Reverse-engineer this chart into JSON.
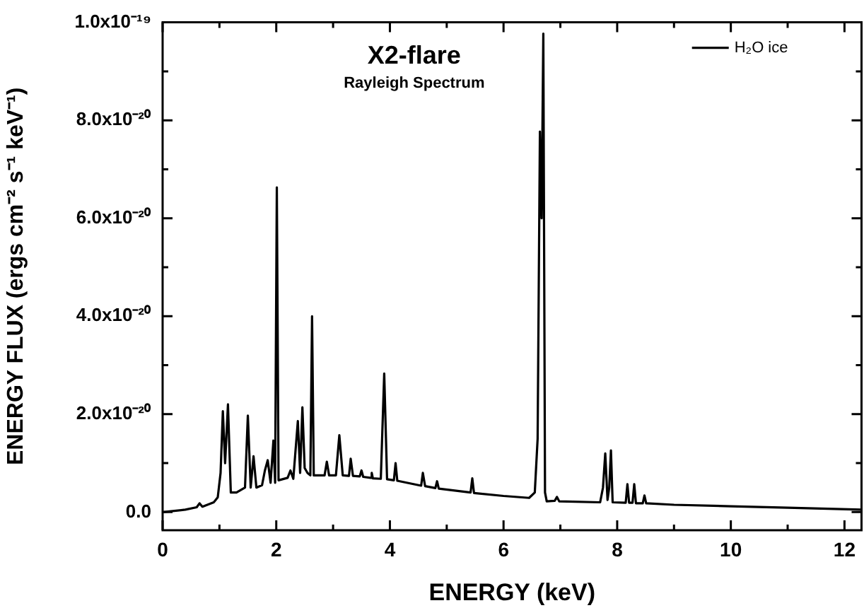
{
  "chart_data": {
    "type": "line",
    "title": "X2-flare",
    "subtitle": "Rayleigh Spectrum",
    "xlabel": "ENERGY (keV)",
    "ylabel": "ENERGY FLUX (ergs cm⁻² s⁻¹ keV⁻¹)",
    "xlim": [
      0,
      12.3
    ],
    "ylim": [
      -3.7e-21,
      1e-19
    ],
    "xticks": [
      0,
      {
        "value": 1,
        "label": null
      },
      2,
      {
        "value": 3,
        "label": null
      },
      4,
      {
        "value": 5,
        "label": null
      },
      6,
      {
        "value": 7,
        "label": null
      },
      8,
      {
        "value": 9,
        "label": null
      },
      10,
      {
        "value": 11,
        "label": null
      },
      12
    ],
    "yticks": [
      {
        "value": 0,
        "label": "0.0"
      },
      {
        "value": 1e-20,
        "label": null
      },
      {
        "value": 2e-20,
        "label": "2.0x10⁻²⁰"
      },
      {
        "value": 3e-20,
        "label": null
      },
      {
        "value": 4e-20,
        "label": "4.0x10⁻²⁰"
      },
      {
        "value": 5e-20,
        "label": null
      },
      {
        "value": 6e-20,
        "label": "6.0x10⁻²⁰"
      },
      {
        "value": 7e-20,
        "label": null
      },
      {
        "value": 8e-20,
        "label": "8.0x10⁻²⁰"
      },
      {
        "value": 9e-20,
        "label": null
      },
      {
        "value": 1e-19,
        "label": "1.0x10⁻¹⁹"
      }
    ],
    "grid": false,
    "legend": "top right",
    "marker": "none",
    "line_style": "solid",
    "series": [
      {
        "name": "H₂O ice",
        "color": "#000000",
        "x": [
          0,
          0.4,
          0.6,
          0.65,
          0.7,
          0.9,
          0.97,
          1.02,
          1.06,
          1.1,
          1.15,
          1.2,
          1.3,
          1.45,
          1.5,
          1.55,
          1.6,
          1.65,
          1.75,
          1.8,
          1.85,
          1.9,
          1.95,
          1.98,
          2.01,
          2.04,
          2.2,
          2.25,
          2.3,
          2.38,
          2.42,
          2.46,
          2.5,
          2.55,
          2.6,
          2.63,
          2.66,
          2.85,
          2.89,
          2.93,
          3.05,
          3.11,
          3.17,
          3.28,
          3.31,
          3.35,
          3.47,
          3.5,
          3.53,
          3.66,
          3.68,
          3.7,
          3.84,
          3.9,
          3.95,
          4.07,
          4.1,
          4.13,
          4.55,
          4.58,
          4.62,
          4.8,
          4.83,
          4.86,
          5.42,
          5.45,
          5.48,
          6.0,
          6.45,
          6.55,
          6.6,
          6.64,
          6.67,
          6.7,
          6.73,
          6.76,
          6.9,
          6.94,
          6.98,
          7.7,
          7.75,
          7.79,
          7.83,
          7.86,
          7.89,
          7.92,
          8.15,
          8.18,
          8.21,
          8.27,
          8.3,
          8.33,
          8.45,
          8.48,
          8.51,
          9,
          10,
          11,
          12.3
        ],
        "values": [
          0,
          5e-22,
          1e-21,
          1.8e-21,
          1.1e-21,
          2e-21,
          3e-21,
          8e-21,
          2.06e-20,
          1e-20,
          2.2e-20,
          4e-21,
          4e-21,
          5e-21,
          1.97e-20,
          5e-21,
          1.14e-20,
          5e-21,
          5.5e-21,
          8.5e-21,
          1.06e-20,
          6e-21,
          1.46e-20,
          6e-21,
          6.63e-20,
          6.5e-21,
          7e-21,
          8.5e-21,
          6.8e-21,
          1.86e-20,
          8e-21,
          2.14e-20,
          9e-21,
          8e-21,
          7.5e-21,
          4e-20,
          7.5e-21,
          7.5e-21,
          1.03e-20,
          7.5e-21,
          7.5e-21,
          1.57e-20,
          7.5e-21,
          7.4e-21,
          1.09e-20,
          7.4e-21,
          7.3e-21,
          8.5e-21,
          7.2e-21,
          7e-21,
          8e-21,
          6.9e-21,
          6.8e-21,
          2.83e-20,
          6.7e-21,
          6.5e-21,
          1e-20,
          6.4e-21,
          5.4e-21,
          8e-21,
          5.3e-21,
          4.9e-21,
          6.3e-21,
          4.8e-21,
          4e-21,
          6.9e-21,
          3.9e-21,
          3.3e-21,
          2.9e-21,
          4e-21,
          1.5e-20,
          7.77e-20,
          6e-20,
          9.77e-20,
          4e-21,
          2.2e-21,
          2.3e-21,
          3.1e-21,
          2.2e-21,
          2e-21,
          5e-21,
          1.2e-20,
          2.5e-21,
          5e-21,
          1.26e-20,
          2e-21,
          1.9e-21,
          5.7e-21,
          1.9e-21,
          1.9e-21,
          5.7e-21,
          1.8e-21,
          1.8e-21,
          3.4e-21,
          1.8e-21,
          1.5e-21,
          1.2e-21,
          9e-22,
          5e-22
        ]
      }
    ]
  }
}
